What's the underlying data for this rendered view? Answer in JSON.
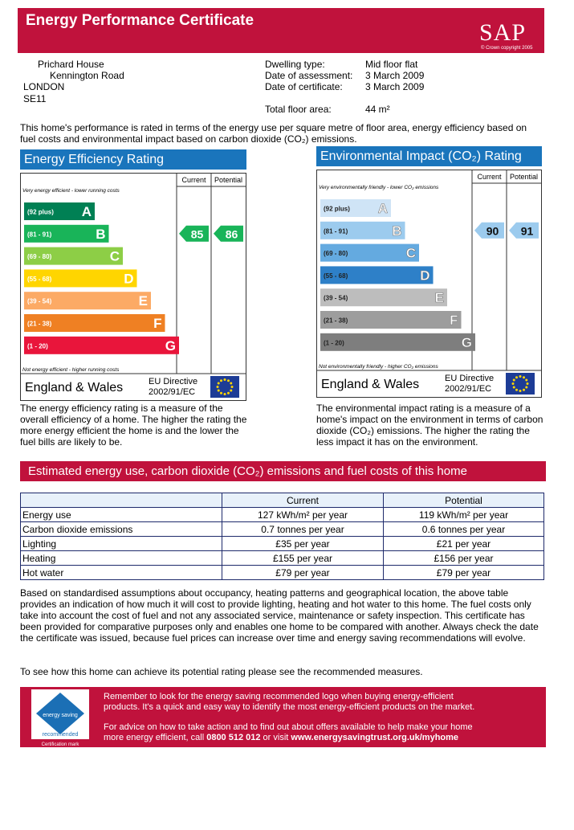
{
  "header": {
    "title": "Energy Performance Certificate",
    "logo": "SAP",
    "copyright": "© Crown copyright 2005"
  },
  "address": [
    "Prichard House",
    "Kennington Road",
    "LONDON",
    "SE11"
  ],
  "details": [
    {
      "label": "Dwelling type:",
      "value": "Mid floor flat"
    },
    {
      "label": "Date of assessment:",
      "value": "3 March 2009"
    },
    {
      "label": "Date of certificate:",
      "value": "3 March 2009"
    },
    {
      "label": "Total floor area:",
      "value": "44 m²"
    }
  ],
  "intro": "This home's performance is rated in terms of the energy use per square metre of floor area, energy efficiency based on fuel costs and environmental impact based on carbon dioxide (CO₂) emissions.",
  "ratings": [
    {
      "title": "Energy Efficiency Rating",
      "columns": [
        "Current",
        "Potential"
      ],
      "top_note": "Very energy efficient - lower running costs",
      "bottom_note": "Not energy efficient - higher running costs",
      "bands": [
        {
          "range": "(92 plus)",
          "letter": "A",
          "color": "#008054"
        },
        {
          "range": "(81 - 91)",
          "letter": "B",
          "color": "#19b459"
        },
        {
          "range": "(69 - 80)",
          "letter": "C",
          "color": "#8dce46"
        },
        {
          "range": "(55 - 68)",
          "letter": "D",
          "color": "#ffd500"
        },
        {
          "range": "(39 - 54)",
          "letter": "E",
          "color": "#fcaa65"
        },
        {
          "range": "(21 - 38)",
          "letter": "F",
          "color": "#ef8023"
        },
        {
          "range": "(1 - 20)",
          "letter": "G",
          "color": "#e9153b"
        }
      ],
      "current": 85,
      "potential": 86,
      "region": "England & Wales",
      "directive": [
        "EU Directive",
        "2002/91/EC"
      ],
      "description": "The energy efficiency rating is a measure of the overall efficiency of a home. The higher the rating the more energy efficient the home is and the lower the fuel bills are likely to be."
    },
    {
      "title": "Environmental Impact (CO₂) Rating",
      "columns": [
        "Current",
        "Potential"
      ],
      "top_note": "Very environmentally friendly - lower CO₂ emissions",
      "bottom_note": "Not environmentally friendly - higher CO₂ emissions",
      "bands": [
        {
          "range": "(92 plus)",
          "letter": "A",
          "color": "#cfe4f6"
        },
        {
          "range": "(81 - 91)",
          "letter": "B",
          "color": "#9ccbee"
        },
        {
          "range": "(69 - 80)",
          "letter": "C",
          "color": "#64aae0"
        },
        {
          "range": "(55 - 68)",
          "letter": "D",
          "color": "#2e80c8"
        },
        {
          "range": "(39 - 54)",
          "letter": "E",
          "color": "#bdbdbd"
        },
        {
          "range": "(21 - 38)",
          "letter": "F",
          "color": "#9d9d9d"
        },
        {
          "range": "(1 - 20)",
          "letter": "G",
          "color": "#7e7e7e"
        }
      ],
      "current": 90,
      "potential": 91,
      "region": "England & Wales",
      "directive": [
        "EU Directive",
        "2002/91/EC"
      ],
      "description": "The environmental impact rating is a measure of a home's impact on the environment in terms of carbon dioxide (CO₂) emissions. The higher the rating the less impact it has on the environment."
    }
  ],
  "estimates": {
    "title": "Estimated energy use, carbon dioxide (CO₂) emissions and fuel costs of this home",
    "columns": [
      "Current",
      "Potential"
    ],
    "rows": [
      {
        "label": "Energy use",
        "current": "127 kWh/m² per year",
        "potential": "119 kWh/m² per year"
      },
      {
        "label": "Carbon dioxide emissions",
        "current": "0.7 tonnes per year",
        "potential": "0.6 tonnes per year"
      },
      {
        "label": "Lighting",
        "current": "£35 per year",
        "potential": "£21 per year"
      },
      {
        "label": "Heating",
        "current": "£155 per year",
        "potential": "£156 per year"
      },
      {
        "label": "Hot water",
        "current": "£79 per year",
        "potential": "£79 per year"
      }
    ],
    "notes": [
      "Based on standardised assumptions about occupancy, heating patterns and geographical location, the above table provides an indication of how much it will cost to provide lighting, heating and hot water to this home. The fuel costs only take into account the cost of fuel and not any associated service, maintenance or safety inspection. This certificate has been provided for comparative purposes only and enables one home to be compared with another. Always check the date the certificate was issued, because fuel prices can increase over time and energy saving recommendations will evolve.",
      "To see how this home can achieve its potential rating please see the recommended measures."
    ]
  },
  "footer": {
    "logo": [
      "energy saving",
      "recommended",
      "Certification mark"
    ],
    "text1": "Remember to look for the energy saving recommended logo when buying energy-efficient products. It's a quick and easy way to identify the most energy-efficient products on the market.",
    "text2": [
      "For advice on how to take action and to find out about offers available to help make your home more energy efficient, call ",
      "0800 512 012",
      " or visit ",
      "www.energysavingtrust.org.uk/myhome"
    ]
  }
}
